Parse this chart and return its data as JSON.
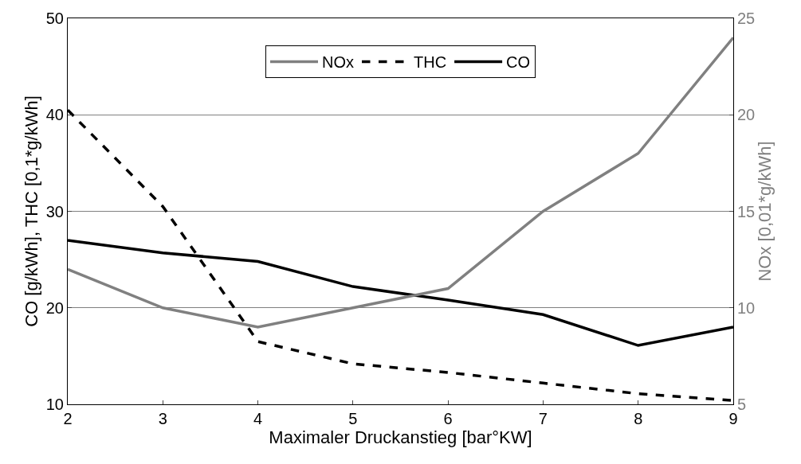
{
  "chart_data": {
    "type": "line",
    "xlabel": "Maximaler Druckanstieg [bar°KW]",
    "ylabel": "CO [g/kWh], THC [0,1*g/kWh]",
    "y2label": "NOx [0,01*g/kWh]",
    "x": [
      2,
      3,
      4,
      5,
      6,
      7,
      8,
      9
    ],
    "series": [
      {
        "name": "NOx",
        "color": "#808080",
        "axis": "y2",
        "line_style": "solid",
        "values": [
          12,
          10,
          9,
          10,
          11,
          15,
          18,
          24
        ]
      },
      {
        "name": "THC",
        "color": "#000000",
        "line_style": "dashed",
        "values": [
          40.5,
          30.5,
          16.5,
          14.2,
          13.3,
          12.2,
          11.1,
          10.4
        ]
      },
      {
        "name": "CO",
        "color": "#000000",
        "line_style": "solid",
        "values": [
          27,
          25.7,
          24.8,
          22.2,
          20.8,
          19.3,
          16.1,
          18
        ]
      }
    ],
    "xlim": [
      2,
      9
    ],
    "xticks": [
      2,
      3,
      4,
      5,
      6,
      7,
      8,
      9
    ],
    "ylim": [
      10,
      50
    ],
    "yticks": [
      10,
      20,
      30,
      40,
      50
    ],
    "y2lim": [
      5,
      25
    ],
    "y2ticks": [
      5,
      10,
      15,
      20,
      25
    ],
    "grid": "y",
    "legend": "top",
    "marker": "none"
  }
}
